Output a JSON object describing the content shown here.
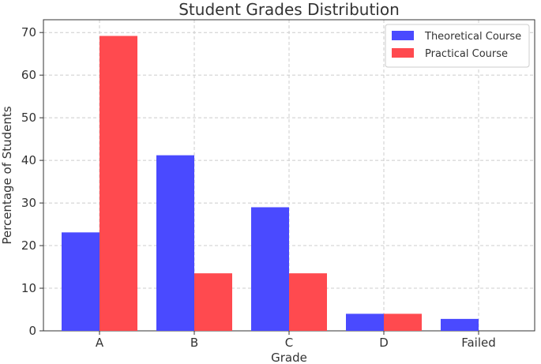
{
  "chart_data": {
    "type": "bar",
    "title": "Student Grades Distribution",
    "xlabel": "Grade",
    "ylabel": "Percentage of Students",
    "categories": [
      "A",
      "B",
      "C",
      "D",
      "Failed"
    ],
    "series": [
      {
        "name": "Theoretical Course",
        "color": "#4a4aff",
        "values": [
          23.1,
          41.2,
          29.0,
          4.0,
          2.8
        ]
      },
      {
        "name": "Practical Course",
        "color": "#ff4a4f",
        "values": [
          69.2,
          13.5,
          13.5,
          4.0,
          0
        ]
      }
    ],
    "ylim": [
      0,
      73
    ],
    "yticks": [
      0,
      10,
      20,
      30,
      40,
      50,
      60,
      70
    ],
    "grid": true,
    "legend_position": "top-right"
  }
}
